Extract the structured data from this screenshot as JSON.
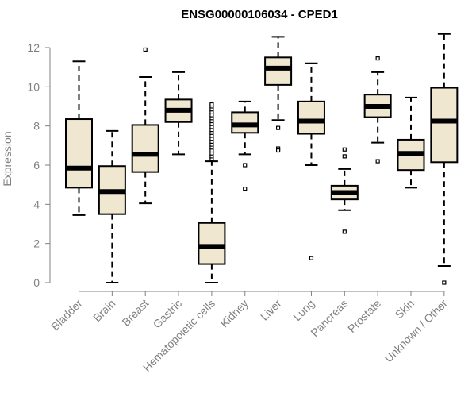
{
  "chart_data": {
    "type": "box",
    "title": "ENSG00000106034 - CPED1",
    "xlabel": "",
    "ylabel": "Expression",
    "ylim": [
      0,
      12
    ],
    "yticks": [
      0,
      2,
      4,
      6,
      8,
      10,
      12
    ],
    "grid": false,
    "legend": "none",
    "colors": {
      "box_fill": "#efe7cf",
      "stroke": "#000000",
      "axis": "#808080"
    },
    "categories": [
      "Bladder",
      "Brain",
      "Breast",
      "Gastric",
      "Hematopoietic cells",
      "Kidney",
      "Liver",
      "Lung",
      "Pancreas",
      "Prostate",
      "Skin",
      "Unknown / Other"
    ],
    "boxes": [
      {
        "q1": 4.85,
        "median": 5.85,
        "q3": 8.35,
        "whisker_low": 3.45,
        "whisker_high": 11.3,
        "outliers": []
      },
      {
        "q1": 3.5,
        "median": 4.65,
        "q3": 5.95,
        "whisker_low": 0.0,
        "whisker_high": 7.75,
        "outliers": []
      },
      {
        "q1": 5.65,
        "median": 6.55,
        "q3": 8.05,
        "whisker_low": 4.05,
        "whisker_high": 10.5,
        "outliers": [
          11.9
        ]
      },
      {
        "q1": 8.2,
        "median": 8.8,
        "q3": 9.35,
        "whisker_low": 6.55,
        "whisker_high": 10.75,
        "outliers": []
      },
      {
        "q1": 0.95,
        "median": 1.85,
        "q3": 3.05,
        "whisker_low": 0.0,
        "whisker_high": 6.2,
        "outliers": [
          6.3,
          6.45,
          6.6,
          6.75,
          6.9,
          7.05,
          7.2,
          7.35,
          7.5,
          7.65,
          7.8,
          7.95,
          8.1,
          8.25,
          8.4,
          8.55,
          8.7,
          8.85,
          9.0,
          9.1
        ]
      },
      {
        "q1": 7.65,
        "median": 8.05,
        "q3": 8.7,
        "whisker_low": 6.55,
        "whisker_high": 9.25,
        "outliers": [
          6.0,
          4.8
        ]
      },
      {
        "q1": 10.1,
        "median": 10.95,
        "q3": 11.5,
        "whisker_low": 8.3,
        "whisker_high": 12.55,
        "outliers": [
          7.9,
          6.85,
          6.75
        ]
      },
      {
        "q1": 7.6,
        "median": 8.25,
        "q3": 9.25,
        "whisker_low": 6.0,
        "whisker_high": 11.2,
        "outliers": [
          1.25
        ]
      },
      {
        "q1": 4.25,
        "median": 4.6,
        "q3": 4.95,
        "whisker_low": 3.7,
        "whisker_high": 5.8,
        "outliers": [
          6.45,
          6.8,
          2.6
        ]
      },
      {
        "q1": 8.45,
        "median": 9.0,
        "q3": 9.6,
        "whisker_low": 7.15,
        "whisker_high": 10.75,
        "outliers": [
          11.45,
          6.2
        ]
      },
      {
        "q1": 5.75,
        "median": 6.6,
        "q3": 7.3,
        "whisker_low": 4.85,
        "whisker_high": 9.45,
        "outliers": []
      },
      {
        "q1": 6.15,
        "median": 8.25,
        "q3": 9.95,
        "whisker_low": 0.85,
        "whisker_high": 12.7,
        "outliers": [
          0.0
        ]
      }
    ]
  }
}
